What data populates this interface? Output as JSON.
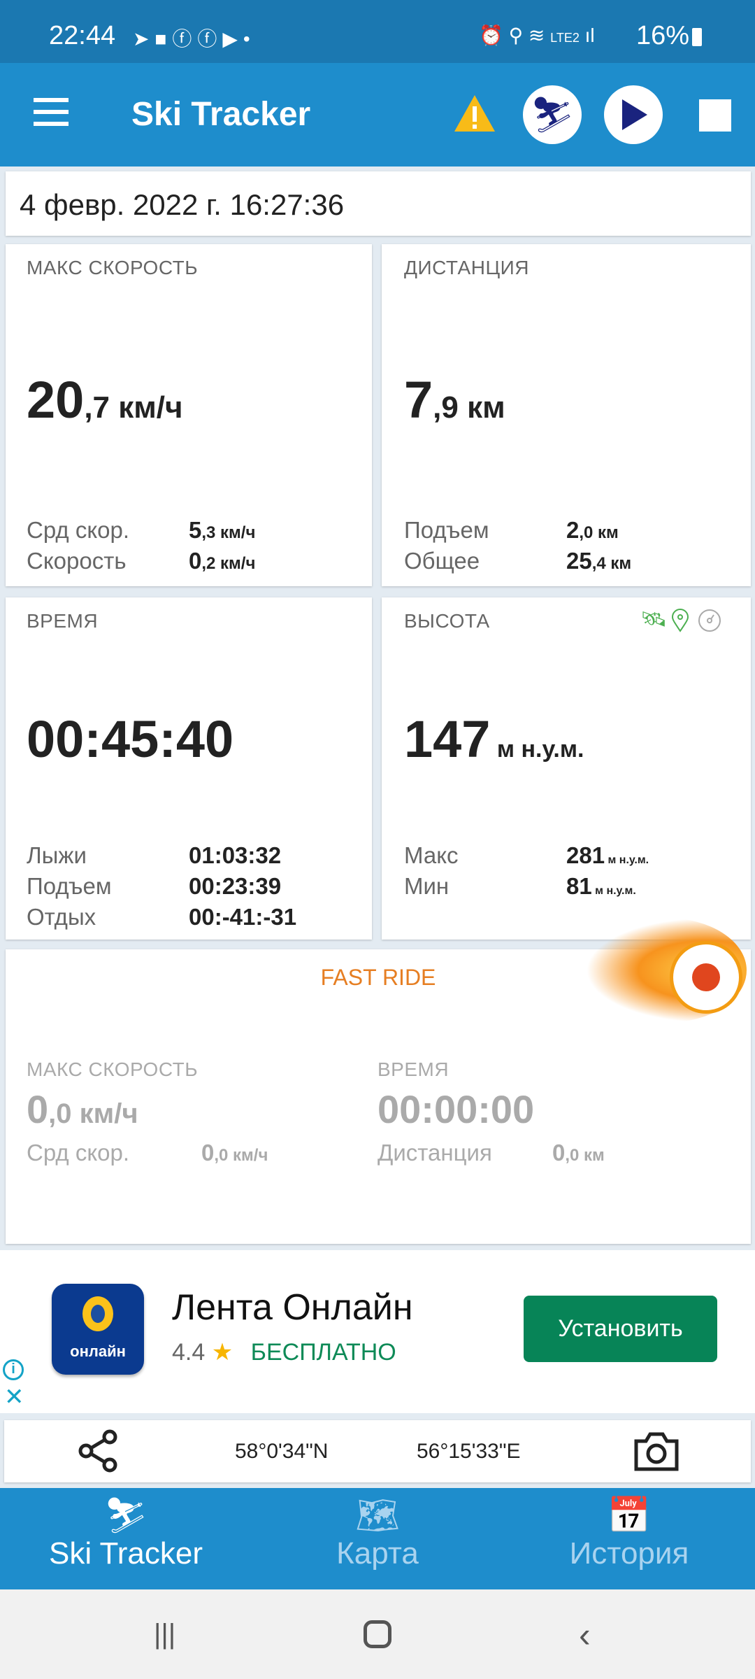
{
  "status_bar": {
    "time": "22:44",
    "battery": "16%",
    "network": "LTE2"
  },
  "app_bar": {
    "title": "Ski Tracker",
    "icons": [
      "menu-icon",
      "warning-icon",
      "skier-icon",
      "play-icon",
      "stop-icon"
    ]
  },
  "date": "4 февр. 2022 г. 16:27:36",
  "max_speed": {
    "label": "МАКС СКОРОСТЬ",
    "int": "20",
    "dec": ",7 км/ч",
    "rows": [
      {
        "k": "Срд скор.",
        "int": "5",
        "dec": ",3 км/ч"
      },
      {
        "k": "Скорость",
        "int": "0",
        "dec": ",2 км/ч"
      }
    ]
  },
  "distance": {
    "label": "ДИСТАНЦИЯ",
    "int": "7",
    "dec": ",9 км",
    "rows": [
      {
        "k": "Подъем",
        "int": "2",
        "dec": ",0 км"
      },
      {
        "k": "Общее",
        "int": "25",
        "dec": ",4 км"
      }
    ]
  },
  "time": {
    "label": "ВРЕМЯ",
    "value": "00:45:40",
    "rows": [
      {
        "k": "Лыжи",
        "v": "01:03:32"
      },
      {
        "k": "Подъем",
        "v": "00:23:39"
      },
      {
        "k": "Отдых",
        "v": "00:-41:-31"
      }
    ]
  },
  "altitude": {
    "label": "ВЫСОТА",
    "int": "147",
    "dec": " м н.у.м.",
    "rows": [
      {
        "k": "Макс",
        "int": "281",
        "dec": " м н.у.м."
      },
      {
        "k": "Мин",
        "int": "81",
        "dec": " м н.у.м."
      }
    ],
    "icons": [
      "satellite-icon",
      "location-pin-icon",
      "barometer-icon"
    ]
  },
  "fast_ride": {
    "title": "FAST RIDE",
    "max_label": "МАКС СКОРОСТЬ",
    "max_int": "0",
    "max_dec": ",0 км/ч",
    "time_label": "ВРЕМЯ",
    "time_value": "00:00:00",
    "avg_k": "Срд скор.",
    "avg_int": "0",
    "avg_dec": ",0 км/ч",
    "dist_k": "Дистанция",
    "dist_int": "0",
    "dist_dec": ",0 км",
    "accent": "#e67e22"
  },
  "ad": {
    "app_name": "Лента Онлайн",
    "icon_text": "онлайн",
    "rating": "4.4",
    "price": "БЕСПЛАТНО",
    "install": "Установить"
  },
  "coords": {
    "lat": "58°0'34\"N",
    "lon": "56°15'33\"E"
  },
  "bottom_nav": [
    {
      "label": "Ski Tracker",
      "active": true
    },
    {
      "label": "Карта"
    },
    {
      "label": "История"
    }
  ]
}
